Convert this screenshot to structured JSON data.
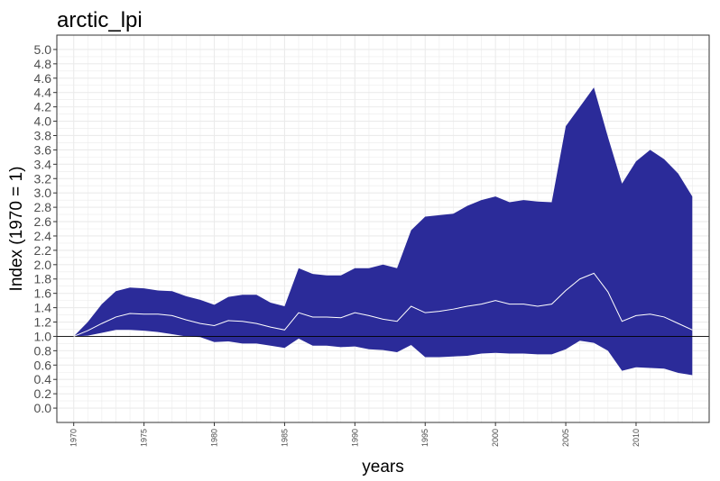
{
  "chart_data": {
    "type": "area",
    "title": "arctic_lpi",
    "xlabel": "years",
    "ylabel": "Index (1970 = 1)",
    "xlim": [
      1968.8,
      2015.2
    ],
    "ylim": [
      -0.2,
      5.2
    ],
    "x_ticks": [
      "1970",
      "1975",
      "1980",
      "1985",
      "1990",
      "1995",
      "2000",
      "2005",
      "2010"
    ],
    "x_tick_values": [
      1970,
      1975,
      1980,
      1985,
      1990,
      1995,
      2000,
      2005,
      2010
    ],
    "y_ticks": [
      "0.0",
      "0.2",
      "0.4",
      "0.6",
      "0.8",
      "1.0",
      "1.2",
      "1.4",
      "1.6",
      "1.8",
      "2.0",
      "2.2",
      "2.4",
      "2.6",
      "2.8",
      "3.0",
      "3.2",
      "3.4",
      "3.6",
      "3.8",
      "4.0",
      "4.2",
      "4.4",
      "4.6",
      "4.8",
      "5.0"
    ],
    "y_tick_values": [
      0.0,
      0.2,
      0.4,
      0.6,
      0.8,
      1.0,
      1.2,
      1.4,
      1.6,
      1.8,
      2.0,
      2.2,
      2.4,
      2.6,
      2.8,
      3.0,
      3.2,
      3.4,
      3.6,
      3.8,
      4.0,
      4.2,
      4.4,
      4.6,
      4.8,
      5.0
    ],
    "reference_line": 1.0,
    "grid": true,
    "colors": {
      "ribbon": "#2b2b99",
      "line": "#ffffff",
      "reference": "#000000",
      "grid": "#ebebeb",
      "border": "#333333"
    },
    "x": [
      1970,
      1971,
      1972,
      1973,
      1974,
      1975,
      1976,
      1977,
      1978,
      1979,
      1980,
      1981,
      1982,
      1983,
      1984,
      1985,
      1986,
      1987,
      1988,
      1989,
      1990,
      1991,
      1992,
      1993,
      1994,
      1995,
      1996,
      1997,
      1998,
      1999,
      2000,
      2001,
      2002,
      2003,
      2004,
      2005,
      2006,
      2007,
      2008,
      2009,
      2010,
      2011,
      2012,
      2013,
      2014
    ],
    "lower": [
      1.0,
      1.01,
      1.05,
      1.09,
      1.09,
      1.08,
      1.06,
      1.03,
      1.0,
      0.99,
      0.92,
      0.93,
      0.9,
      0.9,
      0.87,
      0.84,
      0.97,
      0.87,
      0.87,
      0.85,
      0.86,
      0.82,
      0.81,
      0.78,
      0.88,
      0.71,
      0.71,
      0.72,
      0.73,
      0.76,
      0.77,
      0.76,
      0.76,
      0.75,
      0.75,
      0.82,
      0.94,
      0.91,
      0.8,
      0.52,
      0.57,
      0.56,
      0.55,
      0.49,
      0.46
    ],
    "index": [
      1.0,
      1.08,
      1.18,
      1.27,
      1.32,
      1.31,
      1.31,
      1.29,
      1.23,
      1.18,
      1.15,
      1.22,
      1.21,
      1.18,
      1.13,
      1.09,
      1.33,
      1.27,
      1.27,
      1.26,
      1.33,
      1.29,
      1.24,
      1.21,
      1.42,
      1.33,
      1.35,
      1.38,
      1.42,
      1.45,
      1.5,
      1.45,
      1.45,
      1.42,
      1.45,
      1.64,
      1.8,
      1.88,
      1.62,
      1.21,
      1.29,
      1.31,
      1.27,
      1.18,
      1.09
    ],
    "upper": [
      1.0,
      1.2,
      1.45,
      1.63,
      1.68,
      1.67,
      1.64,
      1.63,
      1.56,
      1.51,
      1.44,
      1.55,
      1.58,
      1.58,
      1.47,
      1.42,
      1.95,
      1.87,
      1.85,
      1.85,
      1.95,
      1.95,
      2.0,
      1.95,
      2.48,
      2.67,
      2.69,
      2.71,
      2.82,
      2.9,
      2.95,
      2.87,
      2.9,
      2.88,
      2.87,
      3.93,
      4.2,
      4.47,
      3.78,
      3.13,
      3.44,
      3.6,
      3.47,
      3.27,
      2.95
    ]
  }
}
